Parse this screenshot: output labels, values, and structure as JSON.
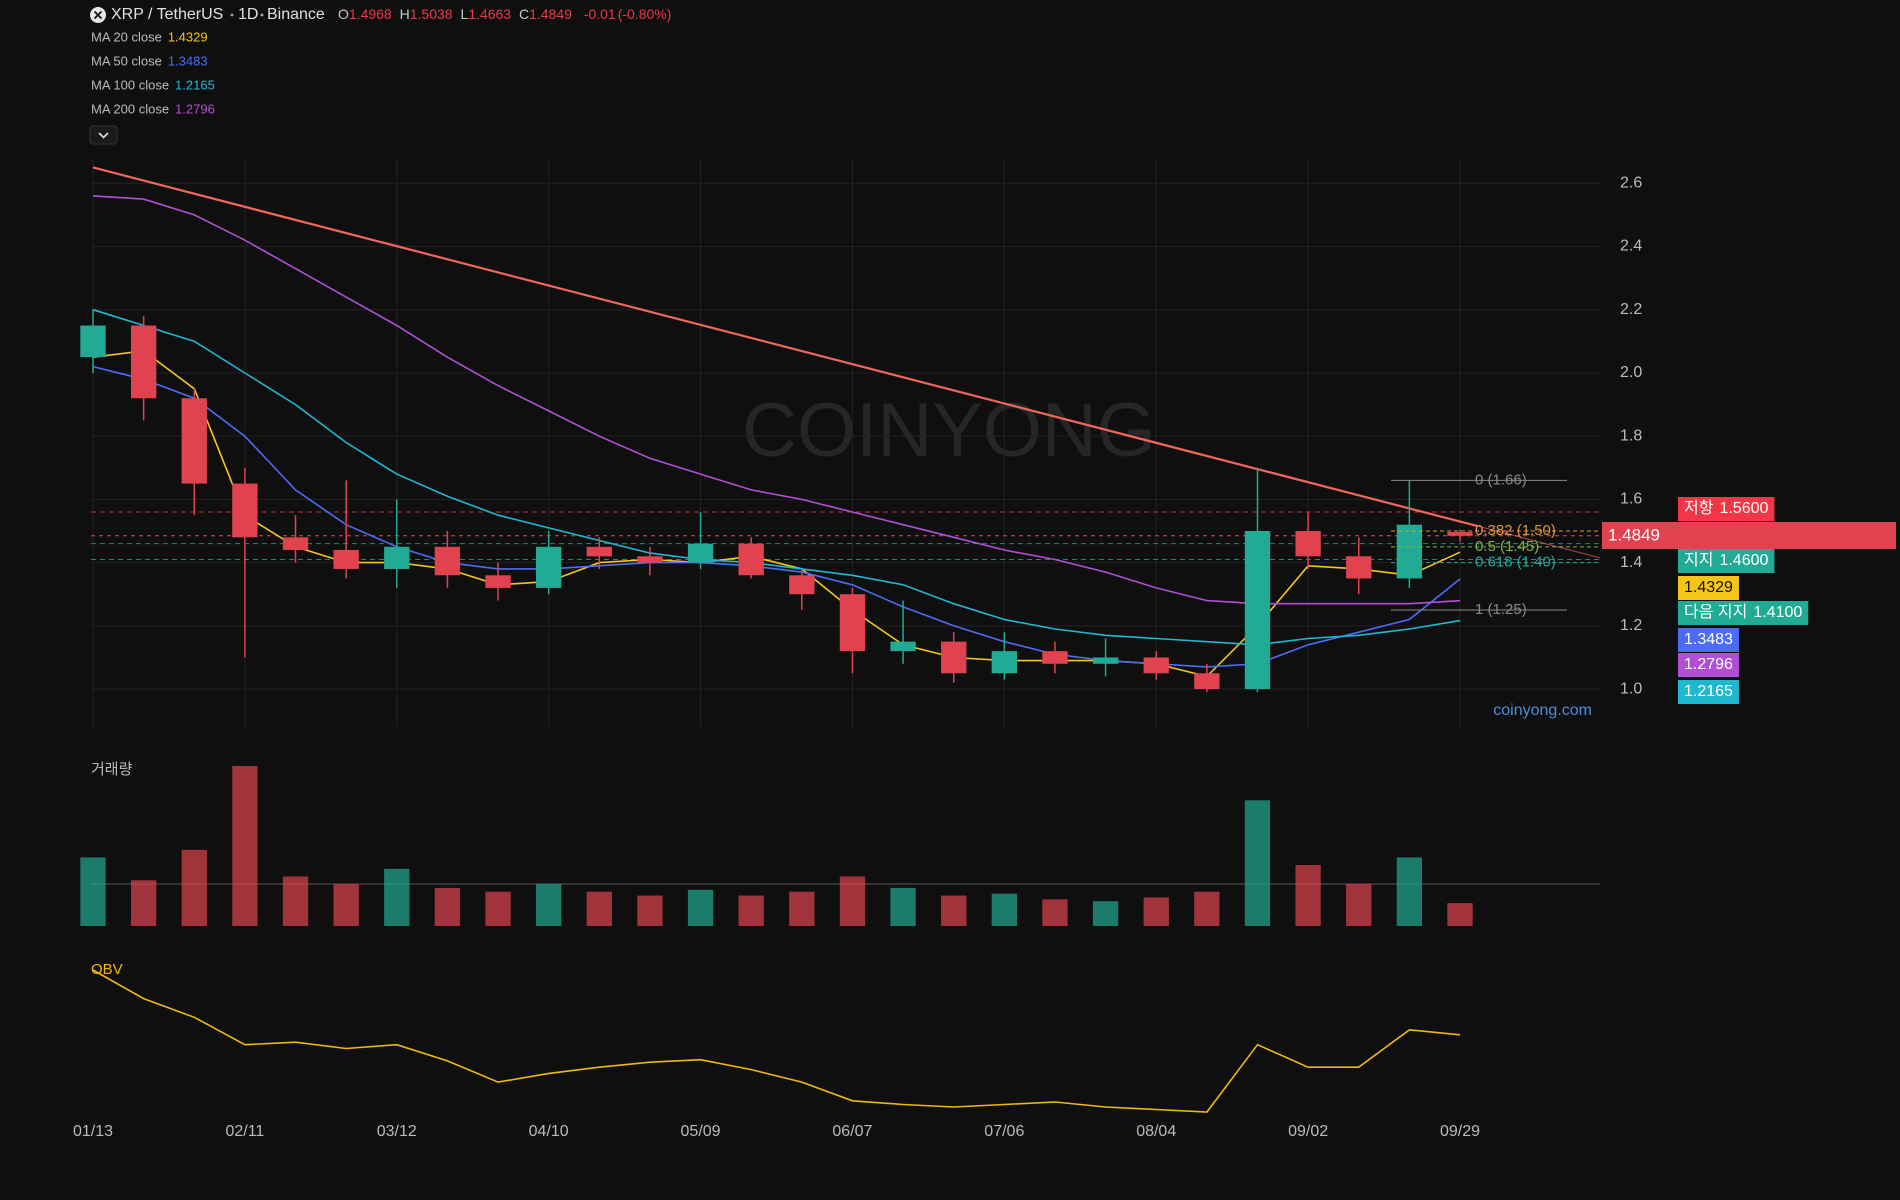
{
  "header": {
    "symbol": "XRP / TetherUS",
    "interval": "1D",
    "exchange": "Binance",
    "ohlc_labels": [
      "O",
      "H",
      "L",
      "C"
    ],
    "change": -0.01,
    "change_pct": {
      "value": -0.8,
      "label": "(-0.80%)"
    }
  },
  "watermark": "COINYONG",
  "site": "coinyong.com",
  "chart_data": [
    {
      "type": "candlestick",
      "categories": [
        "01/13",
        null,
        null,
        "02/11",
        null,
        null,
        "03/12",
        null,
        null,
        "04/10",
        null,
        null,
        "05/09",
        null,
        null,
        "06/07",
        null,
        null,
        "07/06",
        null,
        null,
        "08/04",
        null,
        null,
        "09/02",
        null,
        null,
        "09/29"
      ],
      "open": [
        2.05,
        2.15,
        1.92,
        1.65,
        1.48,
        1.44,
        1.38,
        1.45,
        1.36,
        1.32,
        1.45,
        1.42,
        1.4,
        1.46,
        1.36,
        1.3,
        1.12,
        1.15,
        1.05,
        1.12,
        1.08,
        1.1,
        1.05,
        1.0,
        1.5,
        1.42,
        1.35,
        1.4968
      ],
      "high": [
        2.2,
        2.18,
        1.95,
        1.7,
        1.55,
        1.66,
        1.6,
        1.5,
        1.4,
        1.5,
        1.48,
        1.45,
        1.56,
        1.48,
        1.38,
        1.32,
        1.28,
        1.18,
        1.18,
        1.15,
        1.16,
        1.12,
        1.08,
        1.7,
        1.56,
        1.48,
        1.66,
        1.5038
      ],
      "low": [
        2.0,
        1.85,
        1.55,
        1.1,
        1.4,
        1.35,
        1.32,
        1.32,
        1.28,
        1.3,
        1.38,
        1.36,
        1.38,
        1.35,
        1.25,
        1.05,
        1.08,
        1.02,
        1.03,
        1.05,
        1.04,
        1.03,
        0.99,
        0.99,
        1.38,
        1.3,
        1.32,
        1.4663
      ],
      "close": [
        2.15,
        1.92,
        1.65,
        1.48,
        1.44,
        1.38,
        1.45,
        1.36,
        1.32,
        1.45,
        1.42,
        1.4,
        1.46,
        1.36,
        1.3,
        1.12,
        1.15,
        1.05,
        1.12,
        1.08,
        1.1,
        1.05,
        1.0,
        1.5,
        1.42,
        1.35,
        1.52,
        1.4849
      ],
      "up_color": "#22ab94",
      "down_color": "#e0434f",
      "series": [
        {
          "name": "MA 20 close",
          "color": "#f5c518",
          "values": [
            2.05,
            2.07,
            1.95,
            1.55,
            1.45,
            1.4,
            1.4,
            1.38,
            1.33,
            1.34,
            1.4,
            1.41,
            1.4,
            1.42,
            1.38,
            1.25,
            1.14,
            1.1,
            1.09,
            1.09,
            1.09,
            1.08,
            1.04,
            1.2,
            1.39,
            1.38,
            1.36,
            1.4329
          ]
        },
        {
          "name": "MA 50 close",
          "color": "#4a6cf7",
          "values": [
            2.02,
            1.98,
            1.92,
            1.8,
            1.63,
            1.52,
            1.45,
            1.4,
            1.38,
            1.38,
            1.39,
            1.4,
            1.4,
            1.39,
            1.37,
            1.33,
            1.26,
            1.2,
            1.15,
            1.11,
            1.09,
            1.08,
            1.07,
            1.08,
            1.14,
            1.18,
            1.22,
            1.3483
          ]
        },
        {
          "name": "MA 100 close",
          "color": "#1fb8d0",
          "values": [
            2.2,
            2.15,
            2.1,
            2.0,
            1.9,
            1.78,
            1.68,
            1.61,
            1.55,
            1.51,
            1.47,
            1.43,
            1.41,
            1.4,
            1.38,
            1.36,
            1.33,
            1.27,
            1.22,
            1.19,
            1.17,
            1.16,
            1.15,
            1.14,
            1.16,
            1.17,
            1.19,
            1.2165
          ]
        },
        {
          "name": "MA 200 close",
          "color": "#b04fd6",
          "values": [
            2.56,
            2.55,
            2.5,
            2.42,
            2.33,
            2.24,
            2.15,
            2.05,
            1.96,
            1.88,
            1.8,
            1.73,
            1.68,
            1.63,
            1.6,
            1.56,
            1.52,
            1.48,
            1.44,
            1.41,
            1.37,
            1.32,
            1.28,
            1.27,
            1.27,
            1.27,
            1.27,
            1.2796
          ]
        }
      ],
      "trendline": {
        "color": "#f0685a",
        "values": [
          2.65,
          1.53
        ]
      },
      "levels": [
        {
          "name": "저항",
          "value": 1.56,
          "value_label": "1.5600",
          "color": "#f23645"
        },
        {
          "name": "지지",
          "value": 1.46,
          "value_label": "1.4600",
          "color": "#22ab94"
        },
        {
          "name": "다음 지지",
          "value": 1.41,
          "value_label": "1.4100",
          "color": "#22ab94"
        }
      ],
      "fib": [
        {
          "label": "0 (1.66)",
          "value": 1.66,
          "color": "#888888"
        },
        {
          "label": "0.382 (1.50)",
          "value": 1.5,
          "color": "#e0933a"
        },
        {
          "label": "0.5 (1.45)",
          "value": 1.45,
          "color": "#7cb342"
        },
        {
          "label": "0.618 (1.40)",
          "value": 1.4,
          "color": "#26a69a"
        },
        {
          "label": "1 (1.25)",
          "value": 1.25,
          "color": "#888888"
        }
      ],
      "ylim": [
        0.88,
        2.68
      ],
      "yticks": [
        {
          "value": 1,
          "label": "1.0"
        },
        1.2,
        1.4,
        1.6,
        1.8,
        {
          "value": 2,
          "label": "2.0"
        },
        2.2,
        2.4,
        2.6
      ],
      "grid": true
    },
    {
      "type": "bar",
      "title": "거래량",
      "values": [
        180,
        120,
        200,
        420,
        130,
        110,
        150,
        100,
        90,
        110,
        90,
        80,
        95,
        80,
        90,
        130,
        100,
        80,
        85,
        70,
        65,
        75,
        90,
        330,
        160,
        110,
        180,
        60
      ]
    },
    {
      "type": "line",
      "title": "OBV",
      "color": "#f0b90b",
      "values": [
        118,
        95,
        80,
        58,
        60,
        55,
        58,
        45,
        28,
        35,
        40,
        44,
        46,
        38,
        28,
        13,
        10,
        8,
        10,
        12,
        8,
        6,
        4,
        58,
        40,
        40,
        70,
        66
      ]
    }
  ]
}
